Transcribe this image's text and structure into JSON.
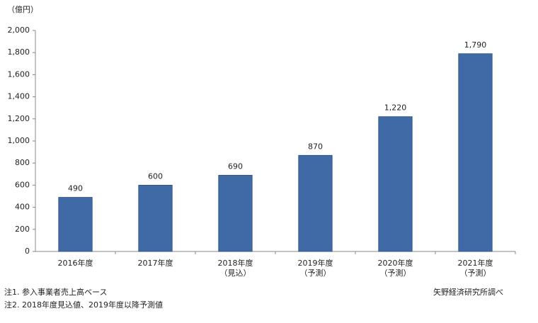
{
  "chart_data": {
    "type": "bar",
    "y_axis_label": "（億円）",
    "categories": [
      "2016年度",
      "2017年度",
      "2018年度\n（見込）",
      "2019年度\n（予測）",
      "2020年度\n（予測）",
      "2021年度\n（予測）"
    ],
    "values": [
      490,
      600,
      690,
      870,
      1220,
      1790
    ],
    "value_labels": [
      "490",
      "600",
      "690",
      "870",
      "1,220",
      "1,790"
    ],
    "color": "#3f6aa6",
    "ylim": [
      0,
      2000
    ],
    "yticks": [
      0,
      200,
      400,
      600,
      800,
      {
        "value": 1000,
        "label": "1,000"
      },
      {
        "value": 1200,
        "label": "1,200"
      },
      {
        "value": 1400,
        "label": "1,400"
      },
      {
        "value": 1600,
        "label": "1,600"
      },
      {
        "value": 1800,
        "label": "1,800"
      },
      {
        "value": 2000,
        "label": "2,000"
      }
    ],
    "grid": false,
    "notes": [
      "注1. 参入事業者売上高ベース",
      "注2. 2018年度見込値、2019年度以降予測値"
    ],
    "source": "矢野経済研究所調べ"
  }
}
